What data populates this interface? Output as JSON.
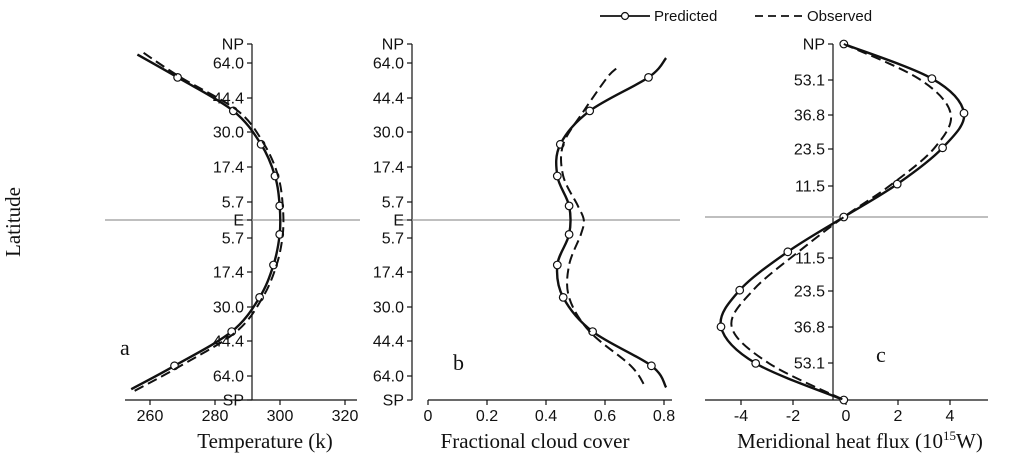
{
  "ylabel": "Latitude",
  "legend": {
    "predicted": "Predicted",
    "observed": "Observed",
    "placement": "top-right"
  },
  "chart_data": [
    {
      "type": "line",
      "panel_letter": "a",
      "xlabel": "Temperature (k)",
      "xlim": [
        250,
        325
      ],
      "xticks": [
        "260",
        "280",
        "300",
        "320"
      ],
      "ytick_labels": [
        "NP",
        "64.0",
        "44.4",
        "30.0",
        "17.4",
        "5.7",
        "E",
        "5.7",
        "17.4",
        "30.0",
        "44.4",
        "64.0",
        "SP"
      ],
      "series": [
        {
          "name": "Predicted",
          "markers": true,
          "y": [
            0.94,
            0.81,
            0.62,
            0.43,
            0.25,
            0.08,
            -0.08,
            -0.25,
            -0.43,
            -0.62,
            -0.81,
            -0.94
          ],
          "values": [
            254,
            267,
            285,
            294,
            298.5,
            300,
            300,
            298,
            293.5,
            284.5,
            266,
            252
          ]
        },
        {
          "name": "Observed",
          "markers": false,
          "y": [
            0.95,
            0.81,
            0.62,
            0.43,
            0.25,
            0.08,
            -0.08,
            -0.25,
            -0.43,
            -0.62,
            -0.81,
            -0.95
          ],
          "values": [
            256,
            268,
            286.5,
            295,
            299.5,
            301,
            301,
            299,
            294.5,
            286,
            268,
            253
          ]
        }
      ]
    },
    {
      "type": "line",
      "panel_letter": "b",
      "xlabel": "Fractional cloud cover",
      "xlim": [
        0,
        0.83
      ],
      "xticks": [
        "0",
        "0.2",
        "0.4",
        "0.6",
        "0.8"
      ],
      "ytick_labels": [
        "NP",
        "64.0",
        "44.4",
        "30.0",
        "17.4",
        "5.7",
        "E",
        "5.7",
        "17.4",
        "30.0",
        "44.4",
        "64.0",
        "SP"
      ],
      "series": [
        {
          "name": "Predicted",
          "markers": true,
          "y": [
            0.92,
            0.81,
            0.62,
            0.43,
            0.25,
            0.08,
            -0.08,
            -0.25,
            -0.43,
            -0.62,
            -0.81,
            -0.93
          ],
          "values": [
            0.81,
            0.75,
            0.55,
            0.45,
            0.44,
            0.48,
            0.48,
            0.44,
            0.46,
            0.56,
            0.76,
            0.81
          ]
        },
        {
          "name": "Observed",
          "markers": false,
          "y": [
            0.86,
            0.81,
            0.62,
            0.43,
            0.25,
            0.08,
            0.0,
            -0.08,
            -0.25,
            -0.43,
            -0.62,
            -0.81,
            -0.93
          ],
          "values": [
            0.64,
            0.61,
            0.53,
            0.46,
            0.46,
            0.51,
            0.53,
            0.52,
            0.48,
            0.48,
            0.55,
            0.69,
            0.74
          ]
        }
      ]
    },
    {
      "type": "line",
      "panel_letter": "c",
      "xlabel": "Meridional heat flux (10",
      "xlabel_sup": "15",
      "xlabel_end": "W)",
      "xlim": [
        -5.2,
        5.4
      ],
      "xticks": [
        "-4",
        "-2",
        "0",
        "2",
        "4"
      ],
      "ytick_labels": [
        "NP",
        "53.1",
        "36.8",
        "23.5",
        "11.5",
        "11.5",
        "23.5",
        "36.8",
        "53.1"
      ],
      "series": [
        {
          "name": "Predicted",
          "markers": true,
          "y": [
            1.0,
            0.8,
            0.6,
            0.4,
            0.19,
            0.0,
            -0.19,
            -0.4,
            -0.6,
            -0.8,
            -1.0
          ],
          "values": [
            0,
            3.3,
            4.5,
            3.7,
            2.0,
            0,
            -2.1,
            -3.9,
            -4.6,
            -3.3,
            0
          ]
        },
        {
          "name": "Observed",
          "markers": false,
          "y": [
            1.0,
            0.8,
            0.6,
            0.4,
            0.19,
            0.0,
            -0.19,
            -0.4,
            -0.6,
            -0.8,
            -1.0
          ],
          "values": [
            0,
            2.8,
            4.0,
            3.4,
            1.8,
            0,
            -1.7,
            -3.4,
            -4.2,
            -2.8,
            0
          ]
        }
      ]
    }
  ]
}
